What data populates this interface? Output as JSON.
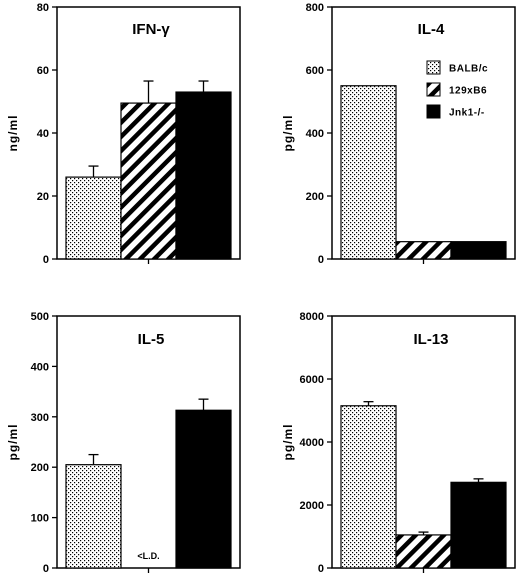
{
  "legend": [
    {
      "name": "BALB/c",
      "pattern": "dots"
    },
    {
      "name": "129xB6",
      "pattern": "stripes"
    },
    {
      "name": "Jnk1-/-",
      "pattern": "solid"
    }
  ],
  "chart_data": [
    {
      "type": "bar",
      "title": "IFN-γ",
      "ylabel": "ng/ml",
      "ylim": [
        0,
        80
      ],
      "yticks": [
        "0",
        "20",
        "40",
        "60",
        "80"
      ],
      "categories": [
        "BALB/c",
        "129xB6",
        "Jnk1-/-"
      ],
      "values": [
        26,
        49.5,
        53
      ],
      "errors": [
        3.5,
        7,
        3.5
      ],
      "notes": [
        "",
        "",
        ""
      ],
      "show_legend": false
    },
    {
      "type": "bar",
      "title": "IL-4",
      "ylabel": "pg/ml",
      "ylim": [
        0,
        800
      ],
      "yticks": [
        "0",
        "200",
        "400",
        "600",
        "800"
      ],
      "categories": [
        "BALB/c",
        "129xB6",
        "Jnk1-/-"
      ],
      "values": [
        550,
        55,
        55
      ],
      "errors": [
        0,
        0,
        0
      ],
      "notes": [
        "",
        "",
        ""
      ],
      "show_legend": true,
      "legend_position": "top-right"
    },
    {
      "type": "bar",
      "title": "IL-5",
      "ylabel": "pg/ml",
      "ylim": [
        0,
        500
      ],
      "yticks": [
        "0",
        "100",
        "200",
        "300",
        "400",
        "500"
      ],
      "categories": [
        "BALB/c",
        "129xB6",
        "Jnk1-/-"
      ],
      "values": [
        205,
        0,
        313
      ],
      "errors": [
        20,
        0,
        22
      ],
      "notes": [
        "",
        "<L.D.",
        ""
      ],
      "show_legend": false
    },
    {
      "type": "bar",
      "title": "IL-13",
      "ylabel": "pg/ml",
      "ylim": [
        0,
        8000
      ],
      "yticks": [
        "0",
        "2000",
        "4000",
        "6000",
        "8000"
      ],
      "categories": [
        "BALB/c",
        "129xB6",
        "Jnk1-/-"
      ],
      "values": [
        5150,
        1050,
        2720
      ],
      "errors": [
        130,
        90,
        110
      ],
      "notes": [
        "",
        "",
        ""
      ],
      "show_legend": false
    }
  ]
}
